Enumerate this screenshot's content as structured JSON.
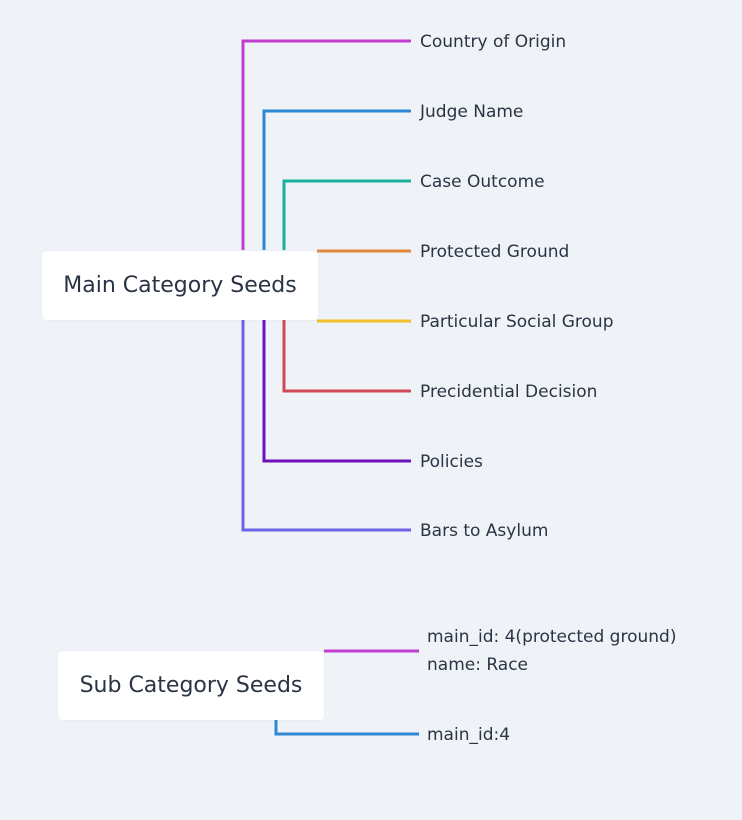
{
  "main_root": {
    "label": "Main Category Seeds"
  },
  "main_children": [
    {
      "label": "Country of Origin",
      "color": "#c13fd0"
    },
    {
      "label": "Judge Name",
      "color": "#2e88d6"
    },
    {
      "label": "Case Outcome",
      "color": "#1ab0a0"
    },
    {
      "label": "Protected Ground",
      "color": "#e08a3f"
    },
    {
      "label": "Particular Social Group",
      "color": "#f0c02c"
    },
    {
      "label": "Precidential Decision",
      "color": "#d04a55"
    },
    {
      "label": "Policies",
      "color": "#6e12b8"
    },
    {
      "label": "Bars to Asylum",
      "color": "#6e62e8"
    }
  ],
  "sub_root": {
    "label": "Sub Category Seeds"
  },
  "sub_children": [
    {
      "line1": "main_id: 4(protected ground)",
      "line2": "name: Race",
      "color": "#c13fd0"
    },
    {
      "line1": "main_id:4",
      "color": "#2e88d6"
    }
  ]
}
